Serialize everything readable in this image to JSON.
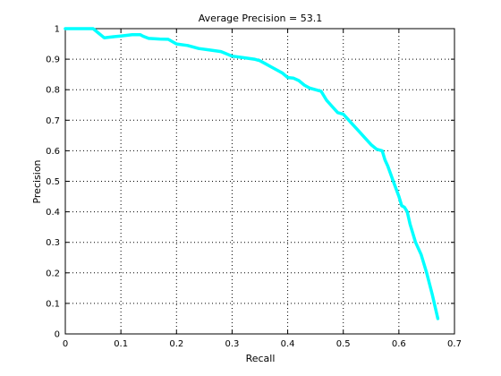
{
  "chart_data": {
    "type": "line",
    "title": "Average Precision = 53.1",
    "xlabel": "Recall",
    "ylabel": "Precision",
    "xlim": [
      0,
      0.7
    ],
    "ylim": [
      0,
      1
    ],
    "grid": true,
    "xticks": [
      "0",
      "0.1",
      "0.2",
      "0.3",
      "0.4",
      "0.5",
      "0.6",
      "0.7"
    ],
    "yticks": [
      "0",
      "0.1",
      "0.2",
      "0.3",
      "0.4",
      "0.5",
      "0.6",
      "0.7",
      "0.8",
      "0.9",
      "1"
    ],
    "colors": {
      "series": "#00ffff",
      "grid": "#000000",
      "axes": "#000000"
    },
    "series": [
      {
        "x": [
          0.0,
          0.05,
          0.06,
          0.07,
          0.08,
          0.1,
          0.12,
          0.135,
          0.14,
          0.15,
          0.17,
          0.185,
          0.19,
          0.2,
          0.22,
          0.24,
          0.26,
          0.28,
          0.3,
          0.32,
          0.34,
          0.35,
          0.36,
          0.37,
          0.38,
          0.39,
          0.4,
          0.41,
          0.42,
          0.43,
          0.44,
          0.45,
          0.46,
          0.47,
          0.48,
          0.49,
          0.5,
          0.51,
          0.52,
          0.53,
          0.54,
          0.55,
          0.56,
          0.57,
          0.575,
          0.58,
          0.59,
          0.6,
          0.605,
          0.61,
          0.615,
          0.62,
          0.63,
          0.64,
          0.65,
          0.66,
          0.67
        ],
        "y": [
          1.0,
          1.0,
          0.985,
          0.97,
          0.972,
          0.976,
          0.98,
          0.98,
          0.975,
          0.968,
          0.966,
          0.965,
          0.96,
          0.95,
          0.945,
          0.935,
          0.93,
          0.925,
          0.91,
          0.905,
          0.9,
          0.895,
          0.885,
          0.875,
          0.865,
          0.855,
          0.84,
          0.838,
          0.83,
          0.815,
          0.805,
          0.8,
          0.795,
          0.765,
          0.745,
          0.725,
          0.72,
          0.7,
          0.68,
          0.66,
          0.64,
          0.62,
          0.605,
          0.6,
          0.57,
          0.55,
          0.5,
          0.45,
          0.42,
          0.415,
          0.4,
          0.36,
          0.3,
          0.26,
          0.2,
          0.13,
          0.05
        ]
      }
    ]
  }
}
